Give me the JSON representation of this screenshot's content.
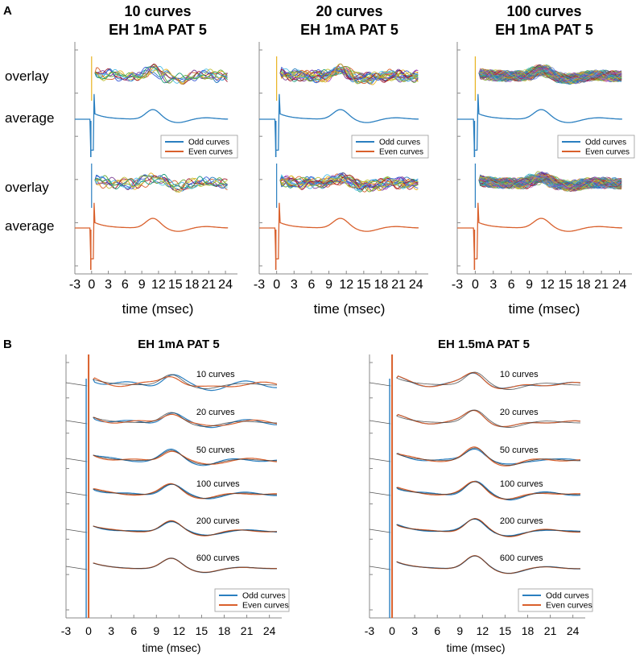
{
  "colors": {
    "odd": "#2a7fc0",
    "even": "#d9602c",
    "overlay_palette": [
      "#2a7fc0",
      "#d9602c",
      "#e8b320",
      "#7b3b92",
      "#6aab37",
      "#4dbfe8",
      "#a3172f",
      "#3b5bd6",
      "#c2c23a",
      "#1f9e7a",
      "#b04fc4"
    ]
  },
  "panel_a": {
    "label": "A",
    "row_labels": {
      "overlay": "overlay",
      "average": "average"
    },
    "xlabel": "time (msec)",
    "x_ticks": [
      -3,
      0,
      3,
      6,
      9,
      12,
      15,
      18,
      21,
      24
    ],
    "xlim": [
      -3,
      25
    ],
    "legend": [
      "Odd curves",
      "Even curves"
    ],
    "subplots": [
      {
        "title_line1": "10 curves",
        "title_line2": "EH 1mA PAT 5",
        "n_curves": 10
      },
      {
        "title_line1": "20 curves",
        "title_line2": "EH 1mA PAT 5",
        "n_curves": 20
      },
      {
        "title_line1": "100 curves",
        "title_line2": "EH 1mA PAT 5",
        "n_curves": 100
      }
    ]
  },
  "panel_b": {
    "label": "B",
    "xlabel": "time (msec)",
    "x_ticks": [
      -3,
      0,
      3,
      6,
      9,
      12,
      15,
      18,
      21,
      24
    ],
    "xlim": [
      -3,
      25
    ],
    "legend": [
      "Odd curves",
      "Even curves"
    ],
    "subplots": [
      {
        "title": "EH 1mA PAT 5",
        "traces": [
          {
            "label": "10 curves"
          },
          {
            "label": "20 curves"
          },
          {
            "label": "50 curves"
          },
          {
            "label": "100 curves"
          },
          {
            "label": "200 curves"
          },
          {
            "label": "600 curves"
          }
        ]
      },
      {
        "title": "EH 1.5mA PAT 5",
        "traces": [
          {
            "label": "10 curves"
          },
          {
            "label": "20 curves"
          },
          {
            "label": "50 curves"
          },
          {
            "label": "100 curves"
          },
          {
            "label": "200 curves"
          },
          {
            "label": "600 curves"
          }
        ]
      }
    ]
  },
  "chart_data": [
    {
      "type": "line",
      "title": "10 curves EH 1mA PAT 5",
      "xlabel": "time (msec)",
      "ylabel": "",
      "xlim": [
        -3,
        25
      ],
      "series": [
        {
          "name": "Odd curves",
          "peak_ms": 11
        },
        {
          "name": "Even curves",
          "peak_ms": 11
        }
      ],
      "overlay_curves": 10
    },
    {
      "type": "line",
      "title": "20 curves EH 1mA PAT 5",
      "xlabel": "time (msec)",
      "ylabel": "",
      "xlim": [
        -3,
        25
      ],
      "series": [
        {
          "name": "Odd curves",
          "peak_ms": 11
        },
        {
          "name": "Even curves",
          "peak_ms": 11
        }
      ],
      "overlay_curves": 20
    },
    {
      "type": "line",
      "title": "100 curves EH 1mA PAT 5",
      "xlabel": "time (msec)",
      "ylabel": "",
      "xlim": [
        -3,
        25
      ],
      "series": [
        {
          "name": "Odd curves",
          "peak_ms": 11
        },
        {
          "name": "Even curves",
          "peak_ms": 11
        }
      ],
      "overlay_curves": 100
    },
    {
      "type": "line",
      "title": "EH 1mA PAT 5",
      "xlabel": "time (msec)",
      "xlim": [
        -3,
        25
      ],
      "series": [
        {
          "name": "Odd curves"
        },
        {
          "name": "Even curves"
        }
      ],
      "averages": [
        "10 curves",
        "20 curves",
        "50 curves",
        "100 curves",
        "200 curves",
        "600 curves"
      ],
      "peak_ms": 11
    },
    {
      "type": "line",
      "title": "EH 1.5mA PAT 5",
      "xlabel": "time (msec)",
      "xlim": [
        -3,
        25
      ],
      "series": [
        {
          "name": "Odd curves"
        },
        {
          "name": "Even curves"
        }
      ],
      "averages": [
        "10 curves",
        "20 curves",
        "50 curves",
        "100 curves",
        "200 curves",
        "600 curves"
      ],
      "peak_ms": 11
    }
  ]
}
